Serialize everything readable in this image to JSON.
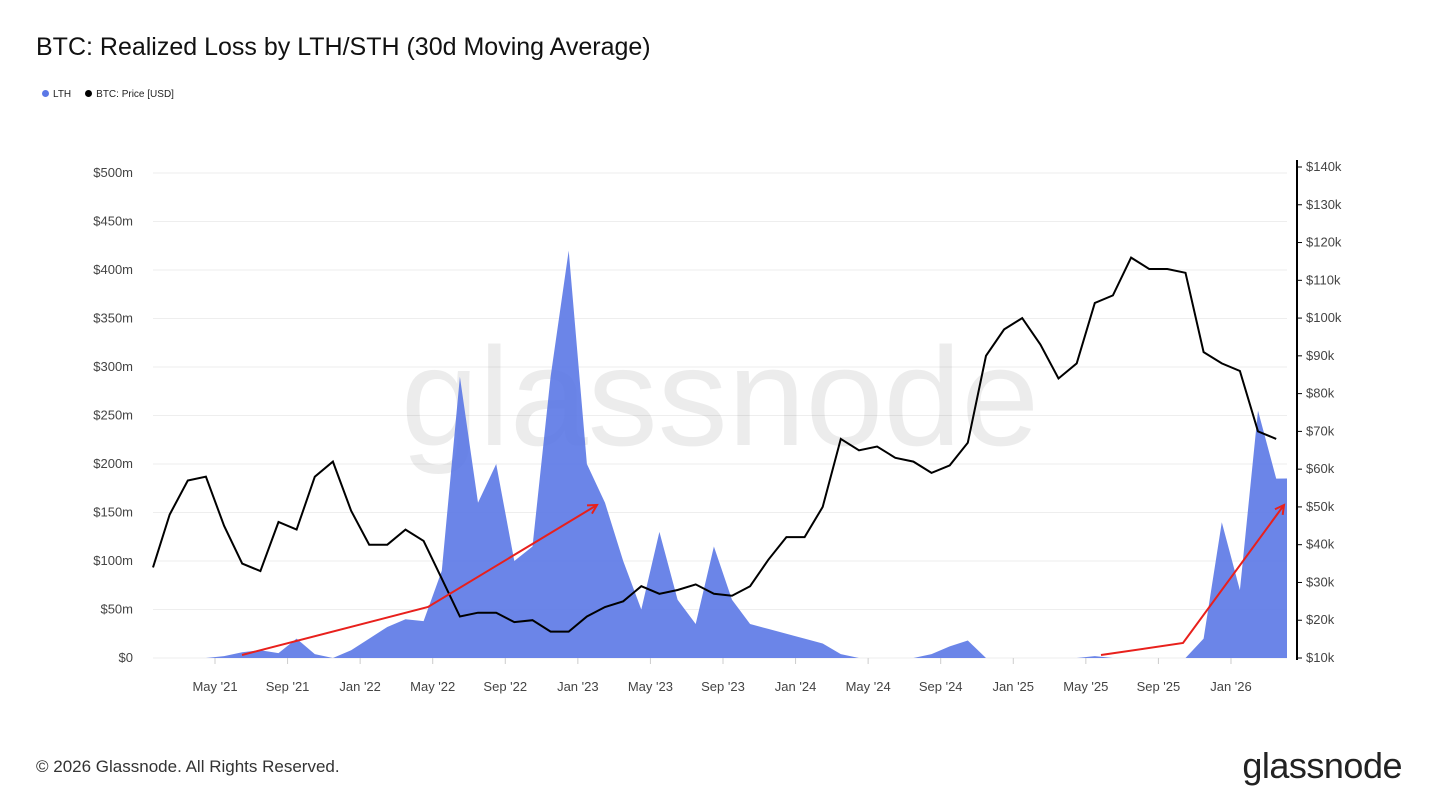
{
  "title": "BTC: Realized Loss by LTH/STH (30d Moving Average)",
  "legend": [
    {
      "label": "LTH",
      "color": "#5b78e6"
    },
    {
      "label": "BTC: Price [USD]",
      "color": "#000000"
    }
  ],
  "watermark": "glassnode",
  "footer": {
    "copyright": "© 2026 Glassnode. All Rights Reserved.",
    "brand": "glassnode"
  },
  "chart_data": {
    "type": "area",
    "x_ticks": [
      "May '21",
      "Sep '21",
      "Jan '22",
      "May '22",
      "Sep '22",
      "Jan '23",
      "May '23",
      "Sep '23",
      "Jan '24",
      "May '24",
      "Sep '24",
      "Jan '25",
      "May '25",
      "Sep '25",
      "Jan '26"
    ],
    "y_left": {
      "ticks": [
        "$0",
        "$50m",
        "$100m",
        "$150m",
        "$200m",
        "$250m",
        "$300m",
        "$350m",
        "$400m",
        "$450m",
        "$500m"
      ],
      "range": [
        0,
        500
      ],
      "unit": "USD millions"
    },
    "y_right": {
      "ticks": [
        "$10k",
        "$20k",
        "$30k",
        "$40k",
        "$50k",
        "$60k",
        "$70k",
        "$80k",
        "$90k",
        "$100k",
        "$110k",
        "$120k",
        "$130k",
        "$140k"
      ],
      "range": [
        10,
        140
      ],
      "scale": "linear",
      "unit": "USD thousands"
    },
    "grid": true,
    "legend_position": "top-left",
    "dates": [
      "2021-01",
      "2021-02",
      "2021-03",
      "2021-04",
      "2021-05",
      "2021-06",
      "2021-07",
      "2021-08",
      "2021-09",
      "2021-10",
      "2021-11",
      "2021-12",
      "2022-01",
      "2022-02",
      "2022-03",
      "2022-04",
      "2022-05",
      "2022-06",
      "2022-07",
      "2022-08",
      "2022-09",
      "2022-10",
      "2022-11",
      "2022-12",
      "2023-01",
      "2023-02",
      "2023-03",
      "2023-04",
      "2023-05",
      "2023-06",
      "2023-07",
      "2023-08",
      "2023-09",
      "2023-10",
      "2023-11",
      "2023-12",
      "2024-01",
      "2024-02",
      "2024-03",
      "2024-04",
      "2024-05",
      "2024-06",
      "2024-07",
      "2024-08",
      "2024-09",
      "2024-10",
      "2024-11",
      "2024-12",
      "2025-01",
      "2025-02",
      "2025-03",
      "2025-04",
      "2025-05",
      "2025-06",
      "2025-07",
      "2025-08",
      "2025-09",
      "2025-10",
      "2025-11",
      "2025-12",
      "2026-01",
      "2026-02",
      "2026-03"
    ],
    "series": [
      {
        "name": "LTH",
        "axis": "left",
        "color": "#5b78e6",
        "values": [
          0,
          0,
          0,
          0,
          2,
          6,
          8,
          5,
          20,
          4,
          0,
          8,
          20,
          32,
          40,
          38,
          90,
          290,
          160,
          200,
          100,
          115,
          290,
          420,
          200,
          160,
          100,
          50,
          130,
          60,
          35,
          115,
          60,
          35,
          30,
          25,
          20,
          15,
          4,
          0,
          0,
          0,
          0,
          4,
          12,
          18,
          0,
          0,
          0,
          0,
          0,
          0,
          2,
          0,
          0,
          0,
          0,
          0,
          20,
          140,
          70,
          255,
          185
        ]
      },
      {
        "name": "BTC: Price [USD]",
        "axis": "right",
        "color": "#000000",
        "values": [
          34,
          48,
          57,
          58,
          45,
          35,
          33,
          46,
          44,
          58,
          62,
          49,
          40,
          40,
          44,
          41,
          31,
          21,
          22,
          22,
          19.5,
          20,
          17,
          17,
          21,
          23.5,
          25,
          29,
          27,
          28,
          29.5,
          27,
          26.5,
          29,
          36,
          42,
          42,
          50,
          68,
          65,
          66,
          63,
          62,
          59,
          61,
          67,
          90,
          97,
          100,
          93,
          84,
          88,
          104,
          106,
          116,
          113,
          113,
          112,
          91,
          88,
          86,
          70,
          68
        ]
      }
    ]
  }
}
